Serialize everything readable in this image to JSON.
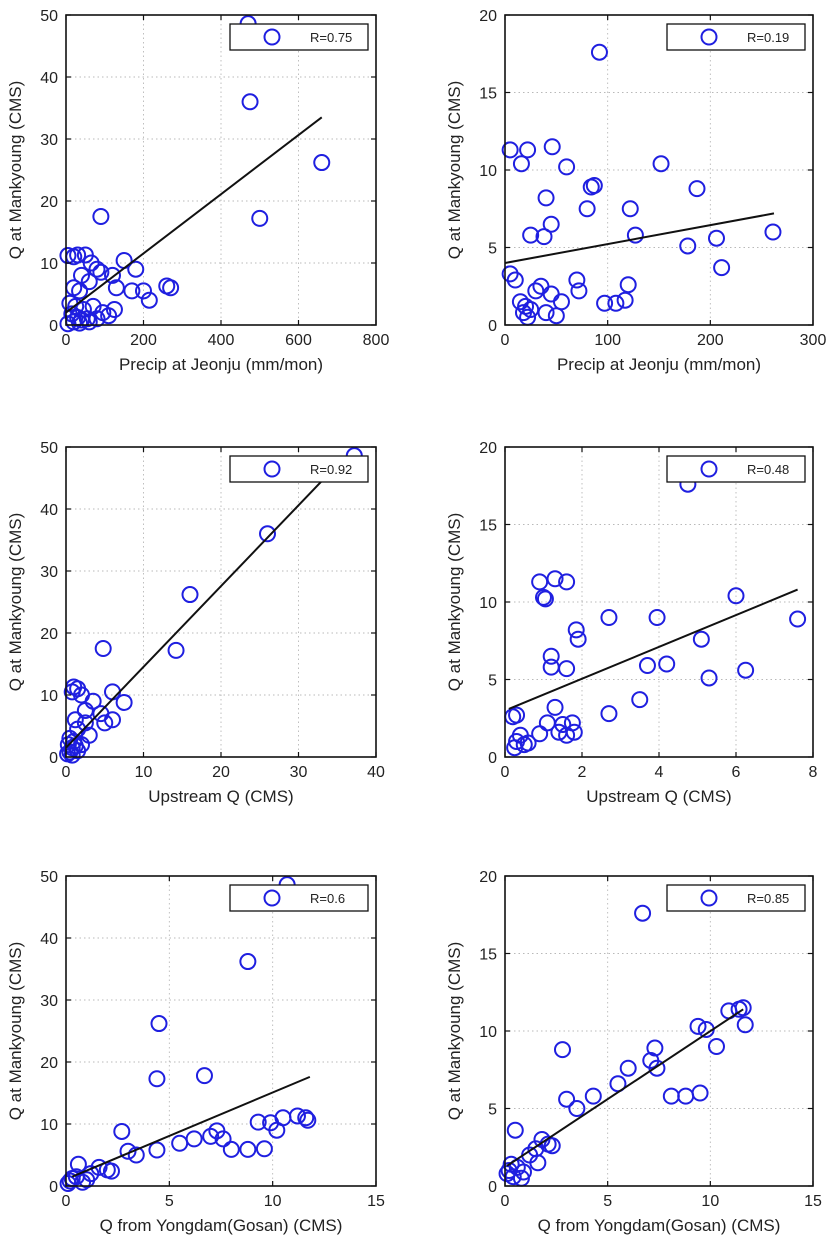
{
  "chart_data": [
    {
      "type": "scatter",
      "xlabel": "Precip at Jeonju (mm/mon)",
      "ylabel": "Q at Mankyoung (CMS)",
      "xlim": [
        0,
        800
      ],
      "ylim": [
        0,
        50
      ],
      "xticks": [
        0,
        200,
        400,
        600,
        800
      ],
      "yticks": [
        0,
        10,
        20,
        30,
        40,
        50
      ],
      "grid": true,
      "legend_position": "top-right",
      "legend_label": "R=0.75",
      "colors": {
        "marker": "#1f1fe0",
        "fit": "#111111"
      },
      "fit_line": [
        [
          0,
          2
        ],
        [
          660,
          33.5
        ]
      ],
      "points": [
        [
          470,
          48.6
        ],
        [
          475,
          36
        ],
        [
          90,
          17.5
        ],
        [
          500,
          17.2
        ],
        [
          660,
          26.2
        ],
        [
          5,
          11.2
        ],
        [
          20,
          11
        ],
        [
          30,
          11.3
        ],
        [
          50,
          11.3
        ],
        [
          65,
          10
        ],
        [
          80,
          9
        ],
        [
          150,
          10.4
        ],
        [
          180,
          9
        ],
        [
          90,
          8.5
        ],
        [
          120,
          8
        ],
        [
          40,
          8
        ],
        [
          20,
          6
        ],
        [
          35,
          5.5
        ],
        [
          60,
          7
        ],
        [
          130,
          6
        ],
        [
          170,
          5.5
        ],
        [
          200,
          5.5
        ],
        [
          215,
          4
        ],
        [
          260,
          6.3
        ],
        [
          270,
          6
        ],
        [
          10,
          3.5
        ],
        [
          25,
          3
        ],
        [
          45,
          2.5
        ],
        [
          70,
          3
        ],
        [
          95,
          2
        ],
        [
          110,
          1.5
        ],
        [
          125,
          2.5
        ],
        [
          15,
          1.8
        ],
        [
          30,
          1.2
        ],
        [
          40,
          0.8
        ],
        [
          55,
          1
        ],
        [
          60,
          0.5
        ],
        [
          80,
          1
        ],
        [
          20,
          0.5
        ],
        [
          35,
          0.3
        ],
        [
          5,
          0.2
        ]
      ]
    },
    {
      "type": "scatter",
      "xlabel": "Precip at Jeonju (mm/mon)",
      "ylabel": "Q at Mankyoung (CMS)",
      "xlim": [
        0,
        300
      ],
      "ylim": [
        0,
        20
      ],
      "xticks": [
        0,
        100,
        200,
        300
      ],
      "yticks": [
        0,
        5,
        10,
        15,
        20
      ],
      "grid": true,
      "legend_position": "top-right",
      "legend_label": "R=0.19",
      "colors": {
        "marker": "#1f1fe0",
        "fit": "#111111"
      },
      "fit_line": [
        [
          0,
          4
        ],
        [
          262,
          7.2
        ]
      ],
      "points": [
        [
          92,
          17.6
        ],
        [
          5,
          11.3
        ],
        [
          22,
          11.3
        ],
        [
          46,
          11.5
        ],
        [
          16,
          10.4
        ],
        [
          60,
          10.2
        ],
        [
          152,
          10.4
        ],
        [
          87,
          9
        ],
        [
          84,
          8.9
        ],
        [
          187,
          8.8
        ],
        [
          40,
          8.2
        ],
        [
          80,
          7.5
        ],
        [
          122,
          7.5
        ],
        [
          45,
          6.5
        ],
        [
          25,
          5.8
        ],
        [
          38,
          5.7
        ],
        [
          127,
          5.8
        ],
        [
          178,
          5.1
        ],
        [
          206,
          5.6
        ],
        [
          261,
          6
        ],
        [
          211,
          3.7
        ],
        [
          5,
          3.3
        ],
        [
          10,
          2.9
        ],
        [
          35,
          2.5
        ],
        [
          30,
          2.2
        ],
        [
          45,
          2
        ],
        [
          70,
          2.9
        ],
        [
          72,
          2.2
        ],
        [
          120,
          2.6
        ],
        [
          15,
          1.5
        ],
        [
          20,
          1.2
        ],
        [
          25,
          1
        ],
        [
          55,
          1.5
        ],
        [
          97,
          1.4
        ],
        [
          108,
          1.4
        ],
        [
          117,
          1.6
        ],
        [
          18,
          0.8
        ],
        [
          40,
          0.8
        ],
        [
          50,
          0.6
        ],
        [
          22,
          0.5
        ]
      ]
    },
    {
      "type": "scatter",
      "xlabel": "Upstream Q (CMS)",
      "ylabel": "Q at Mankyoung (CMS)",
      "xlim": [
        0,
        40
      ],
      "ylim": [
        0,
        50
      ],
      "xticks": [
        0,
        10,
        20,
        30,
        40
      ],
      "yticks": [
        0,
        10,
        20,
        30,
        40,
        50
      ],
      "grid": true,
      "legend_position": "top-right",
      "legend_label": "R=0.92",
      "colors": {
        "marker": "#1f1fe0",
        "fit": "#111111"
      },
      "fit_line": [
        [
          0,
          1.5
        ],
        [
          33,
          44.5
        ]
      ],
      "points": [
        [
          37.2,
          48.6
        ],
        [
          26,
          36
        ],
        [
          16,
          26.2
        ],
        [
          14.2,
          17.2
        ],
        [
          4.8,
          17.5
        ],
        [
          1,
          11.3
        ],
        [
          1.5,
          11
        ],
        [
          0.8,
          10.5
        ],
        [
          2,
          10
        ],
        [
          6,
          10.5
        ],
        [
          3.5,
          9
        ],
        [
          7.5,
          8.8
        ],
        [
          2.5,
          7.5
        ],
        [
          4.5,
          7
        ],
        [
          1.2,
          6
        ],
        [
          2.5,
          5.5
        ],
        [
          5,
          5.5
        ],
        [
          6,
          6
        ],
        [
          1.5,
          4.5
        ],
        [
          3,
          3.5
        ],
        [
          0.5,
          3
        ],
        [
          1,
          2.5
        ],
        [
          2,
          2
        ],
        [
          0.3,
          2
        ],
        [
          0.8,
          1.5
        ],
        [
          1.5,
          1
        ],
        [
          0.5,
          0.8
        ],
        [
          0.2,
          0.5
        ],
        [
          0.8,
          0.3
        ],
        [
          1.2,
          1.8
        ]
      ]
    },
    {
      "type": "scatter",
      "xlabel": "Upstream Q (CMS)",
      "ylabel": "Q at Mankyoung (CMS)",
      "xlim": [
        0,
        8
      ],
      "ylim": [
        0,
        20
      ],
      "xticks": [
        0,
        2,
        4,
        6,
        8
      ],
      "yticks": [
        0,
        5,
        10,
        15,
        20
      ],
      "grid": true,
      "legend_position": "top-right",
      "legend_label": "R=0.48",
      "colors": {
        "marker": "#1f1fe0",
        "fit": "#111111"
      },
      "fit_line": [
        [
          0.1,
          3.1
        ],
        [
          7.6,
          10.8
        ]
      ],
      "points": [
        [
          4.75,
          17.6
        ],
        [
          0.9,
          11.3
        ],
        [
          1.3,
          11.5
        ],
        [
          1.6,
          11.3
        ],
        [
          1.05,
          10.2
        ],
        [
          1.0,
          10.3
        ],
        [
          6.0,
          10.4
        ],
        [
          2.7,
          9
        ],
        [
          3.95,
          9
        ],
        [
          7.6,
          8.9
        ],
        [
          1.85,
          8.2
        ],
        [
          1.9,
          7.6
        ],
        [
          5.1,
          7.6
        ],
        [
          1.2,
          6.5
        ],
        [
          1.2,
          5.8
        ],
        [
          1.6,
          5.7
        ],
        [
          3.7,
          5.9
        ],
        [
          4.2,
          6
        ],
        [
          6.25,
          5.6
        ],
        [
          5.3,
          5.1
        ],
        [
          3.5,
          3.7
        ],
        [
          1.3,
          3.2
        ],
        [
          2.7,
          2.8
        ],
        [
          0.3,
          2.7
        ],
        [
          0.2,
          2.6
        ],
        [
          1.1,
          2.2
        ],
        [
          1.5,
          2.1
        ],
        [
          1.75,
          2.2
        ],
        [
          1.4,
          1.6
        ],
        [
          1.8,
          1.6
        ],
        [
          1.6,
          1.4
        ],
        [
          0.4,
          1.4
        ],
        [
          0.9,
          1.5
        ],
        [
          0.5,
          0.8
        ],
        [
          0.3,
          1.0
        ],
        [
          0.6,
          0.9
        ],
        [
          0.25,
          0.6
        ]
      ]
    },
    {
      "type": "scatter",
      "xlabel": "Q from Yongdam(Gosan) (CMS)",
      "ylabel": "Q at Mankyoung (CMS)",
      "xlim": [
        0,
        15
      ],
      "ylim": [
        0,
        50
      ],
      "xticks": [
        0,
        5,
        10,
        15
      ],
      "yticks": [
        0,
        10,
        20,
        30,
        40,
        50
      ],
      "grid": true,
      "legend_position": "top-right",
      "legend_label": "R=0.6",
      "colors": {
        "marker": "#1f1fe0",
        "fit": "#111111"
      },
      "fit_line": [
        [
          0.3,
          1.5
        ],
        [
          11.8,
          17.6
        ]
      ],
      "points": [
        [
          10.7,
          48.6
        ],
        [
          8.8,
          36.2
        ],
        [
          4.5,
          26.2
        ],
        [
          6.7,
          17.8
        ],
        [
          4.4,
          17.3
        ],
        [
          10.5,
          11
        ],
        [
          11.2,
          11.3
        ],
        [
          11.6,
          11
        ],
        [
          11.7,
          10.6
        ],
        [
          9.9,
          10.2
        ],
        [
          9.3,
          10.3
        ],
        [
          10.2,
          9
        ],
        [
          7.3,
          8.9
        ],
        [
          7.0,
          8.0
        ],
        [
          7.6,
          7.6
        ],
        [
          2.7,
          8.8
        ],
        [
          5.5,
          6.9
        ],
        [
          6.2,
          7.6
        ],
        [
          4.4,
          5.8
        ],
        [
          8.0,
          5.9
        ],
        [
          8.8,
          5.9
        ],
        [
          9.6,
          6
        ],
        [
          3.0,
          5.6
        ],
        [
          3.4,
          5.0
        ],
        [
          2.2,
          2.4
        ],
        [
          2.0,
          2.6
        ],
        [
          1.6,
          3.0
        ],
        [
          1.2,
          2.0
        ],
        [
          0.6,
          3.5
        ],
        [
          0.5,
          1.5
        ],
        [
          0.3,
          1.2
        ],
        [
          0.2,
          0.8
        ],
        [
          0.8,
          0.6
        ],
        [
          1.0,
          1.0
        ],
        [
          0.1,
          0.4
        ]
      ]
    },
    {
      "type": "scatter",
      "xlabel": "Q from Yongdam(Gosan) (CMS)",
      "ylabel": "Q at Mankyoung (CMS)",
      "xlim": [
        0,
        15
      ],
      "ylim": [
        0,
        20
      ],
      "xticks": [
        0,
        5,
        10,
        15
      ],
      "yticks": [
        0,
        5,
        10,
        15,
        20
      ],
      "grid": true,
      "legend_position": "top-right",
      "legend_label": "R=0.85",
      "colors": {
        "marker": "#1f1fe0",
        "fit": "#111111"
      },
      "fit_line": [
        [
          0.1,
          1.3
        ],
        [
          11.6,
          11.4
        ]
      ],
      "points": [
        [
          6.7,
          17.6
        ],
        [
          10.9,
          11.3
        ],
        [
          11.4,
          11.4
        ],
        [
          11.6,
          11.5
        ],
        [
          11.7,
          10.4
        ],
        [
          9.4,
          10.3
        ],
        [
          9.8,
          10.1
        ],
        [
          10.3,
          9.0
        ],
        [
          2.8,
          8.8
        ],
        [
          7.3,
          8.9
        ],
        [
          7.1,
          8.1
        ],
        [
          7.4,
          7.6
        ],
        [
          6.0,
          7.6
        ],
        [
          5.5,
          6.6
        ],
        [
          4.3,
          5.8
        ],
        [
          8.1,
          5.8
        ],
        [
          8.8,
          5.8
        ],
        [
          9.5,
          6.0
        ],
        [
          3.0,
          5.6
        ],
        [
          3.5,
          5.0
        ],
        [
          2.3,
          2.6
        ],
        [
          2.1,
          2.7
        ],
        [
          1.8,
          3.0
        ],
        [
          1.5,
          2.4
        ],
        [
          1.2,
          2.0
        ],
        [
          1.6,
          1.5
        ],
        [
          0.5,
          3.6
        ],
        [
          0.3,
          1.4
        ],
        [
          0.2,
          1.0
        ],
        [
          0.6,
          1.2
        ],
        [
          0.9,
          0.9
        ],
        [
          0.4,
          0.6
        ],
        [
          0.8,
          0.5
        ],
        [
          0.1,
          0.8
        ]
      ]
    }
  ]
}
